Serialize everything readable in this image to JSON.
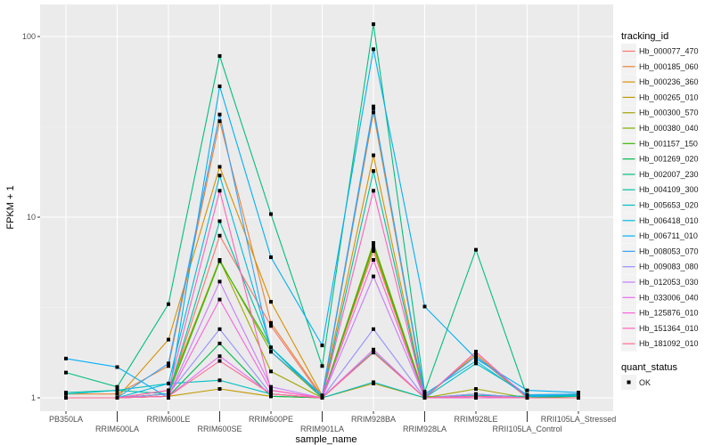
{
  "chart_data": {
    "type": "line",
    "xlabel": "sample_name",
    "ylabel": "FPKM + 1",
    "y_scale": "log10",
    "ylim": [
      0.93,
      140
    ],
    "y_ticks": [
      1,
      10,
      100
    ],
    "y_tick_labels": [
      "1",
      "10",
      "100"
    ],
    "grid": true,
    "legend_position": "right",
    "categories": [
      "PB350LA",
      "RRIM600LA",
      "RRIM600LE",
      "RRIM600SE",
      "RRIM600PE",
      "RRIM901LA",
      "RRIM928BA",
      "RRIM928LA",
      "RRIM928LE",
      "RRII105LA_Control",
      "RRII105LA_Stressed"
    ],
    "color_legend_title": "tracking_id",
    "shape_legend_title": "quant_status",
    "shape_legend_items": [
      "OK"
    ],
    "series": [
      {
        "name": "Hb_000077_470",
        "color": "#F8766D",
        "values": [
          1,
          1,
          1.05,
          7.9,
          2.5,
          1,
          6.5,
          1,
          1.8,
          1,
          1
        ]
      },
      {
        "name": "Hb_000185_060",
        "color": "#EA8331",
        "values": [
          1.05,
          1.05,
          1.5,
          34,
          2.6,
          1.02,
          38,
          1.02,
          1.7,
          1,
          1
        ]
      },
      {
        "name": "Hb_000236_360",
        "color": "#D89000",
        "values": [
          1,
          1,
          2.1,
          19,
          3.4,
          1.03,
          22,
          1,
          1.75,
          1,
          1
        ]
      },
      {
        "name": "Hb_000265_010",
        "color": "#C09B00",
        "values": [
          1,
          1,
          1.02,
          1.12,
          1.02,
          1,
          1.2,
          1,
          1.02,
          1,
          1
        ]
      },
      {
        "name": "Hb_000300_570",
        "color": "#A3A500",
        "values": [
          1,
          1,
          1.1,
          5.8,
          1.4,
          1,
          6.8,
          1,
          1.12,
          1,
          1
        ]
      },
      {
        "name": "Hb_000380_040",
        "color": "#7CAE00",
        "values": [
          1,
          1,
          1.05,
          5.8,
          1.8,
          1,
          7.2,
          1.02,
          1,
          1,
          1
        ]
      },
      {
        "name": "Hb_001157_150",
        "color": "#39B600",
        "values": [
          1,
          1,
          1.05,
          5.7,
          1.9,
          1,
          7,
          1,
          1,
          1,
          1.02
        ]
      },
      {
        "name": "Hb_001269_020",
        "color": "#00BB4E",
        "values": [
          1,
          1,
          1.02,
          2.0,
          1.02,
          1,
          1.8,
          1,
          1.05,
          1,
          1.03
        ]
      },
      {
        "name": "Hb_002007_230",
        "color": "#00BF7D",
        "values": [
          1.38,
          1.15,
          3.3,
          78,
          10.4,
          1.5,
          117,
          1.08,
          6.6,
          1.02,
          1.04
        ]
      },
      {
        "name": "Hb_004109_300",
        "color": "#00C1A3",
        "values": [
          1.07,
          1.1,
          1.05,
          9.5,
          1.9,
          1,
          18,
          1,
          1.03,
          1.02,
          1.02
        ]
      },
      {
        "name": "Hb_005653_020",
        "color": "#00BFC4",
        "values": [
          1.05,
          1.1,
          1.2,
          1.25,
          1.05,
          1,
          1.22,
          1,
          1.55,
          1.04,
          1.05
        ]
      },
      {
        "name": "Hb_006418_010",
        "color": "#00BAE0",
        "values": [
          1,
          1,
          1.2,
          17,
          1.9,
          1.03,
          40,
          1.05,
          1.6,
          1.02,
          1.03
        ]
      },
      {
        "name": "Hb_006711_010",
        "color": "#00B0F6",
        "values": [
          1.65,
          1.48,
          1.0,
          53,
          6.0,
          1.95,
          85,
          3.2,
          1.65,
          1.1,
          1.07
        ]
      },
      {
        "name": "Hb_008053_070",
        "color": "#35A2FF",
        "values": [
          1,
          1,
          1.55,
          37,
          1.8,
          1.03,
          41,
          1.02,
          1.7,
          1.03,
          1.05
        ]
      },
      {
        "name": "Hb_009083_080",
        "color": "#9590FF",
        "values": [
          1,
          1,
          1.05,
          2.4,
          1.05,
          1,
          2.4,
          1,
          1.05,
          1,
          1
        ]
      },
      {
        "name": "Hb_012053_030",
        "color": "#C77CFF",
        "values": [
          1,
          1,
          1.02,
          4.4,
          1.15,
          1,
          4.7,
          1,
          1.02,
          1,
          1
        ]
      },
      {
        "name": "Hb_033006_040",
        "color": "#E76BF3",
        "values": [
          1,
          1,
          1.02,
          1.7,
          1.05,
          1,
          1.85,
          1,
          1.02,
          1,
          1
        ]
      },
      {
        "name": "Hb_125876_010",
        "color": "#FA62DB",
        "values": [
          1,
          1,
          1.02,
          3.5,
          1.1,
          1,
          5.8,
          1,
          1,
          1,
          1
        ]
      },
      {
        "name": "Hb_151364_010",
        "color": "#FF62BC",
        "values": [
          1,
          1,
          1.1,
          14,
          1.1,
          1,
          14,
          1,
          1.8,
          1,
          1
        ]
      },
      {
        "name": "Hb_181092_010",
        "color": "#FF6C90",
        "values": [
          1,
          1,
          1.02,
          1.6,
          1.05,
          1,
          1.78,
          1,
          1.02,
          1,
          1
        ]
      }
    ]
  }
}
